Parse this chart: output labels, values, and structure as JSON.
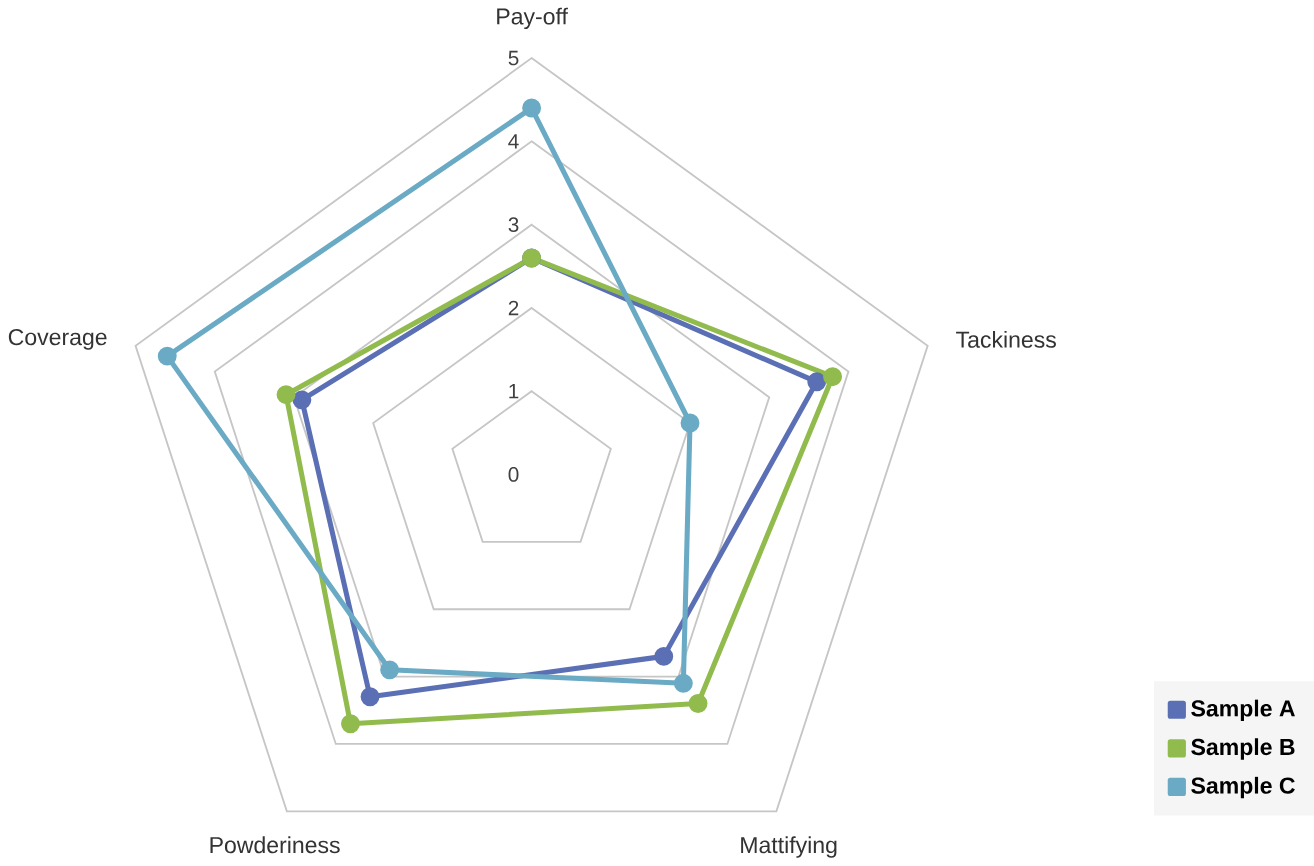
{
  "chart_data": {
    "type": "radar",
    "categories": [
      "Pay-off",
      "Tackiness",
      "Mattifying",
      "Powderiness",
      "Coverage"
    ],
    "series": [
      {
        "name": "Sample A",
        "color": "#5b6fb5",
        "values": [
          2.6,
          3.6,
          2.7,
          3.3,
          2.9
        ]
      },
      {
        "name": "Sample B",
        "color": "#92bb4e",
        "values": [
          2.6,
          3.8,
          3.4,
          3.7,
          3.1
        ]
      },
      {
        "name": "Sample C",
        "color": "#6aaac4",
        "values": [
          4.4,
          2.0,
          3.1,
          2.9,
          4.6
        ]
      }
    ],
    "ylim": [
      0,
      5
    ],
    "yticks": [
      0,
      1,
      2,
      3,
      4,
      5
    ],
    "grid": true,
    "marker": "circle",
    "legend": "bottom right"
  }
}
